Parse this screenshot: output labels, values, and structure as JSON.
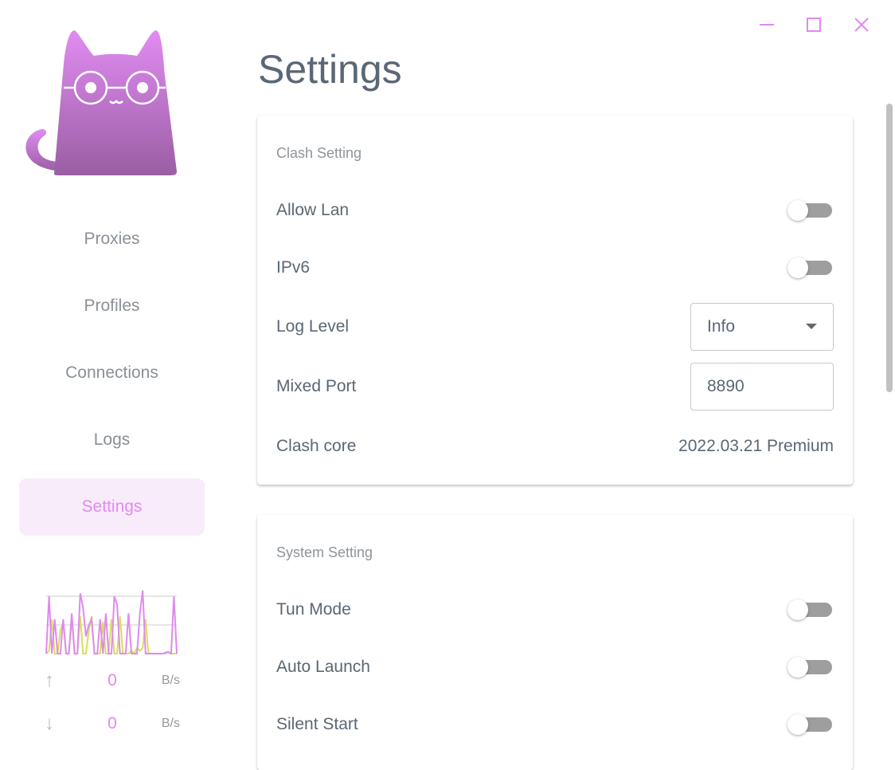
{
  "window": {
    "controls": [
      "minimize-icon",
      "maximize-icon",
      "close-icon"
    ],
    "accent": "#e189ef"
  },
  "sidebar": {
    "items": [
      {
        "label": "Proxies"
      },
      {
        "label": "Profiles"
      },
      {
        "label": "Connections"
      },
      {
        "label": "Logs"
      },
      {
        "label": "Settings",
        "active": true
      }
    ],
    "traffic": {
      "up": {
        "value": "0",
        "unit": "B/s"
      },
      "down": {
        "value": "0",
        "unit": "B/s"
      },
      "upload_series": [
        0,
        1,
        0,
        0.6,
        0,
        0,
        0.6,
        0,
        0,
        0.7,
        0,
        0,
        1.05,
        0.8,
        0.3,
        0.5,
        0.6,
        0,
        0,
        0.6,
        0,
        0.7,
        0,
        0,
        1,
        0.85,
        0,
        0,
        0,
        0.7,
        0,
        0,
        0,
        0.7,
        1.1,
        0,
        0,
        0,
        0,
        0,
        0,
        0,
        0.02,
        0.03,
        0,
        1,
        0
      ],
      "download_series": [
        0,
        0.05,
        0.6,
        0,
        0,
        0.4,
        0.55,
        0,
        0,
        0.6,
        0,
        0,
        0.65,
        0,
        0,
        0.4,
        0.65,
        0,
        0,
        0,
        0.55,
        0,
        0,
        0.6,
        0,
        0,
        0.65,
        0,
        0,
        0,
        0.05,
        0,
        0.1,
        0.05,
        0.1,
        0.6,
        0,
        0,
        0,
        0,
        0,
        0,
        0,
        0.02,
        0,
        0,
        0
      ]
    }
  },
  "page": {
    "title": "Settings"
  },
  "clash_setting": {
    "title": "Clash Setting",
    "allow_lan": {
      "label": "Allow Lan",
      "on": false
    },
    "ipv6": {
      "label": "IPv6",
      "on": false
    },
    "log_level": {
      "label": "Log Level",
      "value": "Info"
    },
    "mixed_port": {
      "label": "Mixed Port",
      "value": "8890"
    },
    "clash_core": {
      "label": "Clash core",
      "value": "2022.03.21 Premium"
    }
  },
  "system_setting": {
    "title": "System Setting",
    "tun_mode": {
      "label": "Tun Mode",
      "on": false
    },
    "auto_launch": {
      "label": "Auto Launch",
      "on": false
    },
    "silent_start": {
      "label": "Silent Start",
      "on": false
    }
  }
}
